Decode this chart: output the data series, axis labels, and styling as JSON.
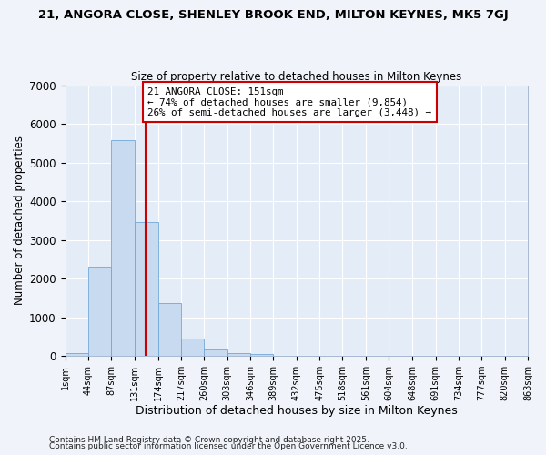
{
  "title": "21, ANGORA CLOSE, SHENLEY BROOK END, MILTON KEYNES, MK5 7GJ",
  "subtitle": "Size of property relative to detached houses in Milton Keynes",
  "xlabel": "Distribution of detached houses by size in Milton Keynes",
  "ylabel": "Number of detached properties",
  "bar_values": [
    70,
    2300,
    5580,
    3450,
    1360,
    460,
    175,
    80,
    40,
    0,
    0,
    0,
    0,
    0,
    0,
    0,
    0,
    0,
    0,
    0
  ],
  "bin_edges": [
    1,
    44,
    87,
    131,
    174,
    217,
    260,
    303,
    346,
    389,
    432,
    475,
    518,
    561,
    604,
    648,
    691,
    734,
    777,
    820,
    863
  ],
  "tick_labels": [
    "1sqm",
    "44sqm",
    "87sqm",
    "131sqm",
    "174sqm",
    "217sqm",
    "260sqm",
    "303sqm",
    "346sqm",
    "389sqm",
    "432sqm",
    "475sqm",
    "518sqm",
    "561sqm",
    "604sqm",
    "648sqm",
    "691sqm",
    "734sqm",
    "777sqm",
    "820sqm",
    "863sqm"
  ],
  "bar_color": "#c8daf0",
  "bar_edge_color": "#6fa8d8",
  "vline_x": 151,
  "vline_color": "#cc0000",
  "annotation_title": "21 ANGORA CLOSE: 151sqm",
  "annotation_line1": "← 74% of detached houses are smaller (9,854)",
  "annotation_line2": "26% of semi-detached houses are larger (3,448) →",
  "annotation_box_edge_color": "#cc0000",
  "ylim": [
    0,
    7000
  ],
  "yticks": [
    0,
    1000,
    2000,
    3000,
    4000,
    5000,
    6000,
    7000
  ],
  "footer1": "Contains HM Land Registry data © Crown copyright and database right 2025.",
  "footer2": "Contains public sector information licensed under the Open Government Licence v3.0.",
  "bg_color": "#f0f4fa",
  "plot_bg_color": "#e4ecf7"
}
